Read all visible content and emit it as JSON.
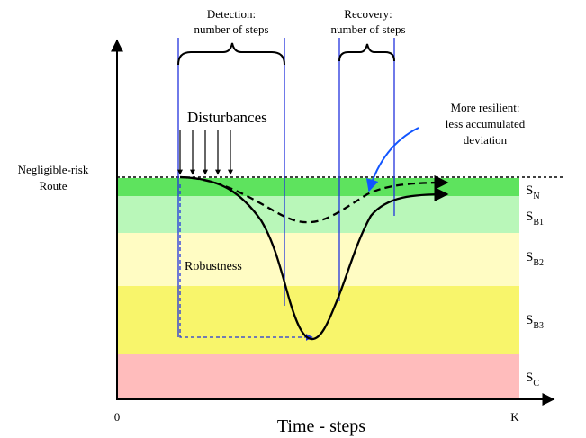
{
  "labels": {
    "detection_line1": "Detection:",
    "detection_line2": "number of steps",
    "recovery_line1": "Recovery:",
    "recovery_line2": "number of steps",
    "resilient_line1": "More resilient:",
    "resilient_line2": "less accumulated",
    "resilient_line3": "deviation",
    "disturbances": "Disturbances",
    "negligible_line1": "Negligible-risk",
    "negligible_line2": "Route",
    "robustness": "Robustness",
    "x_origin": "0",
    "x_end": "K",
    "x_axis_title": "Time - steps"
  },
  "states": [
    {
      "name": "S",
      "sub": "N",
      "color": "#5ee35e"
    },
    {
      "name": "S",
      "sub": "B1",
      "color": "#b9f7b9"
    },
    {
      "name": "S",
      "sub": "B2",
      "color": "#fffcc3"
    },
    {
      "name": "S",
      "sub": "B3",
      "color": "#f8f56b"
    },
    {
      "name": "S",
      "sub": "C",
      "color": "#ffbcbc"
    }
  ],
  "colors": {
    "guide_lines": "#2233dd",
    "resilient_arrow": "#1155ff"
  }
}
